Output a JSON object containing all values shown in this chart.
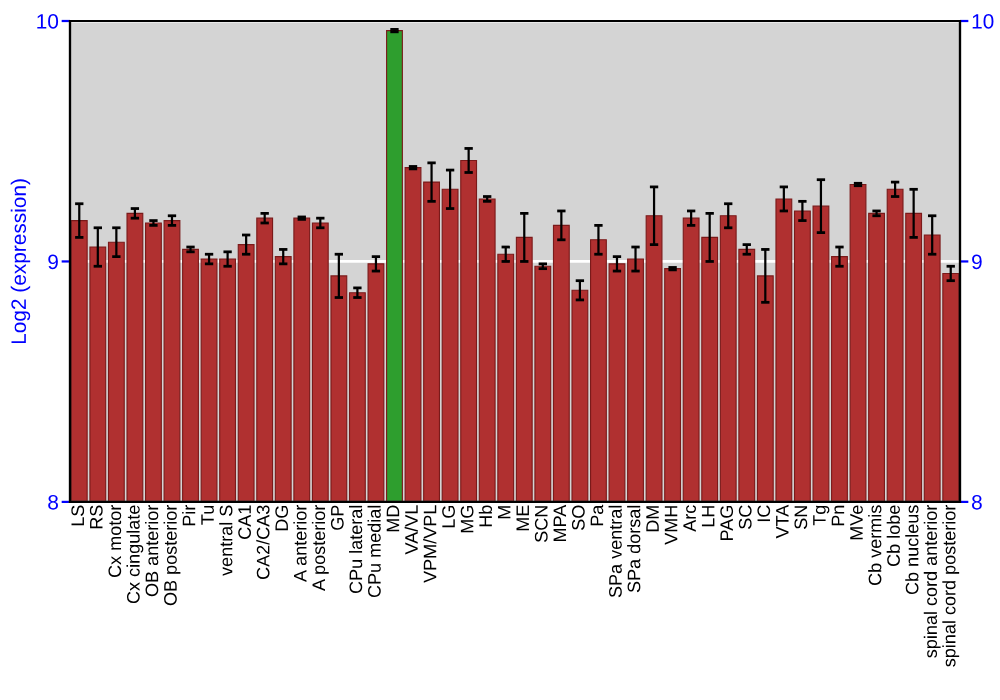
{
  "chart_data": {
    "type": "bar",
    "ylabel": "Log2 (expression)",
    "categories": [
      "LS",
      "RS",
      "Cx motor",
      "Cx cingulate",
      "OB anterior",
      "OB posterior",
      "Pir",
      "Tu",
      "ventral S",
      "CA1",
      "CA2/CA3",
      "DG",
      "A anterior",
      "A posterior",
      "GP",
      "CPu lateral",
      "CPu medial",
      "MD",
      "VA/VL",
      "VPM/VPL",
      "LG",
      "MG",
      "Hb",
      "M",
      "ME",
      "SCN",
      "MPA",
      "SO",
      "Pa",
      "SPa ventral",
      "SPa dorsal",
      "DM",
      "VMH",
      "Arc",
      "LH",
      "PAG",
      "SC",
      "IC",
      "VTA",
      "SN",
      "Tg",
      "Pn",
      "MVe",
      "Cb vermis",
      "Cb lobe",
      "Cb nucleus",
      "spinal cord anterior",
      "spinal cord posterior"
    ],
    "values": [
      9.17,
      9.06,
      9.08,
      9.2,
      9.16,
      9.17,
      9.05,
      9.01,
      9.01,
      9.07,
      9.18,
      9.02,
      9.18,
      9.16,
      8.94,
      8.87,
      8.99,
      9.96,
      9.39,
      9.33,
      9.3,
      9.42,
      9.26,
      9.03,
      9.1,
      8.98,
      9.15,
      8.88,
      9.09,
      8.99,
      9.01,
      9.19,
      8.97,
      9.18,
      9.1,
      9.19,
      9.05,
      8.94,
      9.26,
      9.21,
      9.23,
      9.02,
      9.32,
      9.2,
      9.3,
      9.2,
      9.11,
      8.95
    ],
    "errors": [
      0.07,
      0.08,
      0.06,
      0.02,
      0.01,
      0.02,
      0.01,
      0.02,
      0.03,
      0.04,
      0.02,
      0.03,
      0.005,
      0.02,
      0.09,
      0.02,
      0.03,
      0.005,
      0.005,
      0.08,
      0.08,
      0.05,
      0.01,
      0.03,
      0.1,
      0.01,
      0.06,
      0.04,
      0.06,
      0.03,
      0.05,
      0.12,
      0.005,
      0.03,
      0.1,
      0.05,
      0.02,
      0.11,
      0.05,
      0.04,
      0.11,
      0.04,
      0.005,
      0.01,
      0.03,
      0.1,
      0.08,
      0.03
    ],
    "colors": [
      "#b03030",
      "#b03030",
      "#b03030",
      "#b03030",
      "#b03030",
      "#b03030",
      "#b03030",
      "#b03030",
      "#b03030",
      "#b03030",
      "#b03030",
      "#b03030",
      "#b03030",
      "#b03030",
      "#b03030",
      "#b03030",
      "#b03030",
      "#2e9e2e",
      "#b03030",
      "#b03030",
      "#b03030",
      "#b03030",
      "#b03030",
      "#b03030",
      "#b03030",
      "#b03030",
      "#b03030",
      "#b03030",
      "#b03030",
      "#b03030",
      "#b03030",
      "#b03030",
      "#b03030",
      "#b03030",
      "#b03030",
      "#b03030",
      "#b03030",
      "#b03030",
      "#b03030",
      "#b03030",
      "#b03030",
      "#b03030",
      "#b03030",
      "#b03030",
      "#b03030",
      "#b03030",
      "#b03030",
      "#b03030"
    ],
    "ylim": [
      8,
      10
    ],
    "yticks": [
      8,
      9,
      10
    ],
    "y2lim": [
      8,
      10
    ],
    "y2ticks": [
      8,
      9,
      10
    ],
    "grid": "y"
  }
}
